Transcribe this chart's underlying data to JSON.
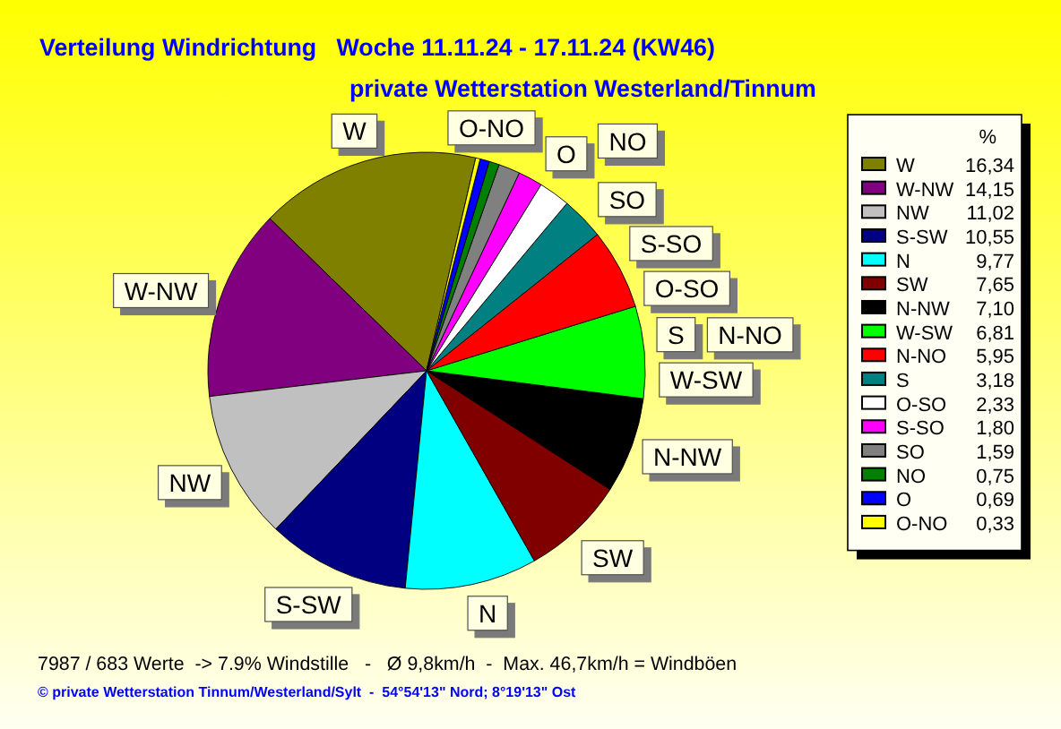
{
  "chart_data": {
    "type": "pie",
    "title": "Verteilung Windrichtung   Woche 11.11.24 - 17.11.24 (KW46)",
    "subtitle": "private Wetterstation Westerland/Tinnum",
    "legend_title": "%",
    "legend": "right",
    "categories": [
      "W",
      "W-NW",
      "NW",
      "S-SW",
      "N",
      "SW",
      "N-NW",
      "W-SW",
      "N-NO",
      "S",
      "O-SO",
      "S-SO",
      "SO",
      "NO",
      "O",
      "O-NO"
    ],
    "values": [
      16.34,
      14.15,
      11.02,
      10.55,
      9.77,
      7.65,
      7.1,
      6.81,
      5.95,
      3.18,
      2.33,
      1.8,
      1.59,
      0.75,
      0.69,
      0.33
    ],
    "value_labels": [
      "16,34",
      "14,15",
      "11,02",
      "10,55",
      "9,77",
      "7,65",
      "7,10",
      "6,81",
      "5,95",
      "3,18",
      "2,33",
      "1,80",
      "1,59",
      "0,75",
      "0,69",
      "0,33"
    ],
    "colors": [
      "#808000",
      "#800080",
      "#c0c0c0",
      "#000080",
      "#00ffff",
      "#800000",
      "#000000",
      "#00ff00",
      "#ff0000",
      "#008080",
      "#ffffff",
      "#ff00ff",
      "#808080",
      "#008000",
      "#0000ff",
      "#ffff00"
    ],
    "annotations": [
      "7987 / 683 Werte  -> 7.9% Windstille   -   Ø 9,8km/h  -  Max. 46,7km/h = Windböen",
      "© private Wetterstation Tinnum/Westerland/Sylt  -  54°54'13\" Nord; 8°19'13\" Ost"
    ]
  }
}
